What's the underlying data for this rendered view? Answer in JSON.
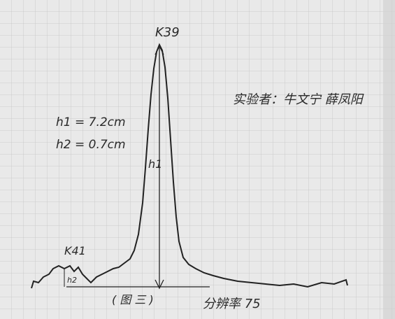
{
  "peak_labels": {
    "main": "K39",
    "minor": "K41"
  },
  "heights": {
    "h1_label": "h1",
    "h2_label": "h2",
    "h1_note": "h1 = 7.2cm",
    "h2_note": "h2 = 0.7cm"
  },
  "experimenter": "实验者：牛文宁 薛凤阳",
  "figure_label": "( 图 三 )",
  "resolution_note": "分辨率 75"
}
